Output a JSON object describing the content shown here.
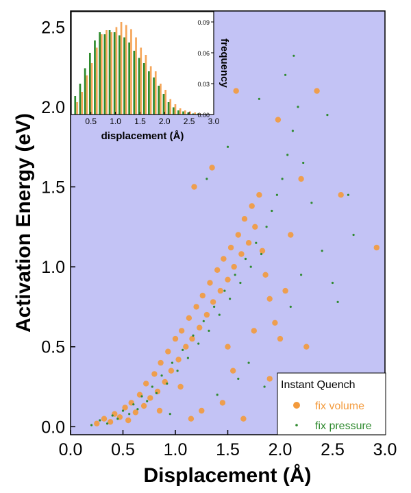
{
  "chart_data": [
    {
      "id": "main",
      "type": "scatter",
      "title": "",
      "xlabel": "Displacement (Å)",
      "ylabel": "Activation Energy (eV)",
      "xlim": [
        0.0,
        3.0
      ],
      "ylim": [
        -0.05,
        2.6
      ],
      "x_ticks": [
        "0.0",
        "0.5",
        "1.0",
        "1.5",
        "2.0",
        "2.5",
        "3.0"
      ],
      "y_ticks": [
        "0.0",
        "0.5",
        "1.0",
        "1.5",
        "2.0",
        "2.5"
      ],
      "background_color": "#c3c3f5",
      "legend": {
        "title": "Instant Quench",
        "placement": "bottom-right"
      },
      "series": [
        {
          "name": "fix volume",
          "color": "#f39a3c",
          "marker": "large-circle",
          "points": [
            [
              0.25,
              0.02
            ],
            [
              0.32,
              0.05
            ],
            [
              0.38,
              0.03
            ],
            [
              0.42,
              0.08
            ],
            [
              0.47,
              0.06
            ],
            [
              0.52,
              0.12
            ],
            [
              0.55,
              0.04
            ],
            [
              0.58,
              0.15
            ],
            [
              0.62,
              0.09
            ],
            [
              0.66,
              0.2
            ],
            [
              0.7,
              0.13
            ],
            [
              0.72,
              0.27
            ],
            [
              0.76,
              0.18
            ],
            [
              0.8,
              0.33
            ],
            [
              0.83,
              0.22
            ],
            [
              0.86,
              0.4
            ],
            [
              0.9,
              0.28
            ],
            [
              0.93,
              0.47
            ],
            [
              0.96,
              0.35
            ],
            [
              1.0,
              0.55
            ],
            [
              1.03,
              0.42
            ],
            [
              1.06,
              0.6
            ],
            [
              1.1,
              0.5
            ],
            [
              1.13,
              0.68
            ],
            [
              1.16,
              0.55
            ],
            [
              1.2,
              0.75
            ],
            [
              1.23,
              0.62
            ],
            [
              1.26,
              0.82
            ],
            [
              1.3,
              0.7
            ],
            [
              1.33,
              0.9
            ],
            [
              1.36,
              0.78
            ],
            [
              1.4,
              0.98
            ],
            [
              1.43,
              0.85
            ],
            [
              1.46,
              1.05
            ],
            [
              1.5,
              0.92
            ],
            [
              1.53,
              1.12
            ],
            [
              1.56,
              1.0
            ],
            [
              1.6,
              1.2
            ],
            [
              1.63,
              1.08
            ],
            [
              1.66,
              1.3
            ],
            [
              1.7,
              1.15
            ],
            [
              1.73,
              1.38
            ],
            [
              1.76,
              1.25
            ],
            [
              1.8,
              1.45
            ],
            [
              1.83,
              1.1
            ],
            [
              1.86,
              0.95
            ],
            [
              1.9,
              0.8
            ],
            [
              1.95,
              0.65
            ],
            [
              2.0,
              0.55
            ],
            [
              2.05,
              0.85
            ],
            [
              1.18,
              1.5
            ],
            [
              1.35,
              1.62
            ],
            [
              1.58,
              2.1
            ],
            [
              1.98,
              1.92
            ],
            [
              2.35,
              2.1
            ],
            [
              2.58,
              1.45
            ],
            [
              2.92,
              1.12
            ],
            [
              2.25,
              0.5
            ],
            [
              2.2,
              1.55
            ],
            [
              1.45,
              0.15
            ],
            [
              1.25,
              0.1
            ],
            [
              1.65,
              0.05
            ],
            [
              1.9,
              0.3
            ],
            [
              1.55,
              0.35
            ],
            [
              1.05,
              0.25
            ],
            [
              0.85,
              0.1
            ],
            [
              1.15,
              0.05
            ],
            [
              1.75,
              0.6
            ],
            [
              1.5,
              0.5
            ],
            [
              2.1,
              1.2
            ]
          ]
        },
        {
          "name": "fix pressure",
          "color": "#2f8a2f",
          "marker": "small-dot",
          "points": [
            [
              0.2,
              0.01
            ],
            [
              0.28,
              0.04
            ],
            [
              0.35,
              0.02
            ],
            [
              0.4,
              0.07
            ],
            [
              0.45,
              0.05
            ],
            [
              0.5,
              0.1
            ],
            [
              0.56,
              0.08
            ],
            [
              0.6,
              0.14
            ],
            [
              0.64,
              0.11
            ],
            [
              0.68,
              0.19
            ],
            [
              0.73,
              0.16
            ],
            [
              0.78,
              0.25
            ],
            [
              0.82,
              0.21
            ],
            [
              0.87,
              0.32
            ],
            [
              0.92,
              0.27
            ],
            [
              0.97,
              0.4
            ],
            [
              1.02,
              0.35
            ],
            [
              1.07,
              0.48
            ],
            [
              1.12,
              0.43
            ],
            [
              1.17,
              0.57
            ],
            [
              1.22,
              0.52
            ],
            [
              1.27,
              0.66
            ],
            [
              1.32,
              0.6
            ],
            [
              1.37,
              0.75
            ],
            [
              1.42,
              0.7
            ],
            [
              1.47,
              0.85
            ],
            [
              1.52,
              0.8
            ],
            [
              1.57,
              0.95
            ],
            [
              1.62,
              0.9
            ],
            [
              1.67,
              1.05
            ],
            [
              1.72,
              1.0
            ],
            [
              1.77,
              1.15
            ],
            [
              1.82,
              1.08
            ],
            [
              1.87,
              1.25
            ],
            [
              1.92,
              1.35
            ],
            [
              1.97,
              1.45
            ],
            [
              2.02,
              1.55
            ],
            [
              2.07,
              1.7
            ],
            [
              2.12,
              1.85
            ],
            [
              2.17,
              2.0
            ],
            [
              2.13,
              2.32
            ],
            [
              2.05,
              2.2
            ],
            [
              2.22,
              1.65
            ],
            [
              2.3,
              1.4
            ],
            [
              2.4,
              1.1
            ],
            [
              2.5,
              0.9
            ],
            [
              2.55,
              0.78
            ],
            [
              2.7,
              1.2
            ],
            [
              2.65,
              1.45
            ],
            [
              2.45,
              1.95
            ],
            [
              1.3,
              1.55
            ],
            [
              1.5,
              1.75
            ],
            [
              1.8,
              2.05
            ],
            [
              1.7,
              0.4
            ],
            [
              1.85,
              0.25
            ],
            [
              2.1,
              0.75
            ],
            [
              2.2,
              0.95
            ],
            [
              1.4,
              0.2
            ],
            [
              1.6,
              0.3
            ],
            [
              0.95,
              0.08
            ]
          ]
        }
      ]
    },
    {
      "id": "inset",
      "type": "bar",
      "title": "",
      "xlabel": "displacement (Å)",
      "ylabel": "frequency",
      "xlim": [
        0.1,
        3.0
      ],
      "ylim": [
        0.0,
        0.1
      ],
      "x_ticks": [
        "0.5",
        "1.0",
        "1.5",
        "2.0",
        "2.5",
        "3.0"
      ],
      "y_ticks": [
        "0.00",
        "0.03",
        "0.06",
        "0.09"
      ],
      "y_axis_side": "right",
      "background_color": "#ffffff",
      "bin_width": 0.1,
      "categories": [
        0.2,
        0.3,
        0.4,
        0.5,
        0.6,
        0.7,
        0.8,
        0.9,
        1.0,
        1.1,
        1.2,
        1.3,
        1.4,
        1.5,
        1.6,
        1.7,
        1.8,
        1.9,
        2.0,
        2.1,
        2.2,
        2.3,
        2.4,
        2.5,
        2.6,
        2.7
      ],
      "series": [
        {
          "name": "fix volume",
          "color": "#f5a65a",
          "values": [
            0.012,
            0.022,
            0.038,
            0.05,
            0.065,
            0.078,
            0.082,
            0.08,
            0.085,
            0.09,
            0.087,
            0.083,
            0.075,
            0.065,
            0.058,
            0.047,
            0.042,
            0.03,
            0.024,
            0.015,
            0.01,
            0.006,
            0.004,
            0.003,
            0.002,
            0.001
          ]
        },
        {
          "name": "fix pressure",
          "color": "#2e8b2e",
          "values": [
            0.018,
            0.03,
            0.045,
            0.06,
            0.072,
            0.08,
            0.078,
            0.082,
            0.08,
            0.077,
            0.075,
            0.07,
            0.062,
            0.055,
            0.05,
            0.042,
            0.036,
            0.028,
            0.02,
            0.012,
            0.007,
            0.004,
            0.003,
            0.002,
            0.001,
            0.001
          ]
        }
      ]
    }
  ]
}
